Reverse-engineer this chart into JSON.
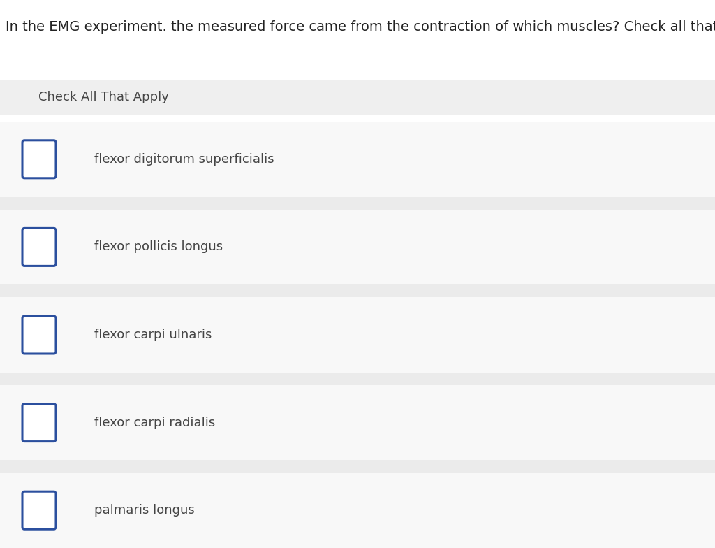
{
  "title": "In the EMG experiment. the measured force came from the contraction of which muscles? Check all that apply.",
  "title_fontsize": 14,
  "title_color": "#222222",
  "header_text": "Check All That Apply",
  "header_bg": "#efefef",
  "header_fontsize": 13,
  "header_text_color": "#444444",
  "options": [
    "flexor digitorum superficialis",
    "flexor pollicis longus",
    "flexor carpi ulnaris",
    "flexor carpi radialis",
    "palmaris longus"
  ],
  "option_fontsize": 13,
  "option_text_color": "#444444",
  "option_bg": "#f8f8f8",
  "sep_bg": "#ebebeb",
  "checkbox_color": "#2b4f9e",
  "bg_color": "#ffffff",
  "fig_width": 10.24,
  "fig_height": 7.84,
  "dpi": 100
}
